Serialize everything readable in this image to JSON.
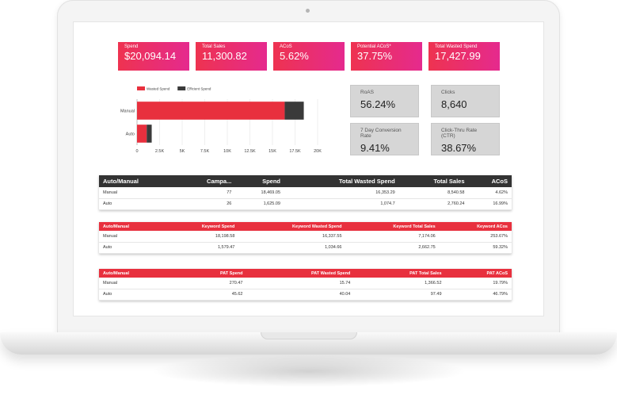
{
  "kpis": [
    {
      "label": "Spend",
      "value": "$20,094.14"
    },
    {
      "label": "Total Sales",
      "value": "11,300.82"
    },
    {
      "label": "ACoS",
      "value": "5.62%"
    },
    {
      "label": "Potential ACoS*",
      "value": "37.75%"
    },
    {
      "label": "Total Wasted Spend",
      "value": "17,427.99"
    }
  ],
  "tiles": [
    {
      "label": "RoAS",
      "value": "56.24%"
    },
    {
      "label": "Clicks",
      "value": "8,640"
    },
    {
      "label": "7 Day Conversion Rate",
      "value": "9.41%"
    },
    {
      "label": "Click-Thru Rate (CTR)",
      "value": "38.67%"
    }
  ],
  "chart_data": {
    "type": "bar",
    "orientation": "horizontal",
    "stacked": true,
    "categories": [
      "Manual",
      "Auto"
    ],
    "series": [
      {
        "name": "Wasted Spend",
        "values": [
          16353,
          1075
        ],
        "color": "#e8303e"
      },
      {
        "name": "Efficient Spend",
        "values": [
          2116,
          551
        ],
        "color": "#3a3a3a"
      }
    ],
    "xlim": [
      0,
      20000
    ],
    "xticks": [
      "0",
      "2.5K",
      "5K",
      "7.5K",
      "10K",
      "12.5K",
      "15K",
      "17.5K",
      "20K"
    ],
    "legend": "top-left",
    "grid": true
  },
  "table1": {
    "headers": [
      "Auto/Manual",
      "Campa...",
      "Spend",
      "Total Wasted Spend",
      "Total Sales",
      "ACoS"
    ],
    "rows": [
      [
        "Manual",
        "77",
        "18,469.05",
        "16,353.29",
        "8,540.58",
        "4.62%"
      ],
      [
        "Auto",
        "26",
        "1,625.09",
        "1,074.7",
        "2,760.24",
        "16.99%"
      ]
    ]
  },
  "table2": {
    "headers": [
      "Auto/Manual",
      "Keyword Spend",
      "Keyword Wasted Spend",
      "Keyword Total Sales",
      "Keyword ACos"
    ],
    "rows": [
      [
        "Manual",
        "18,198.58",
        "16,337.55",
        "7,174.06",
        "253.67%"
      ],
      [
        "Auto",
        "1,579.47",
        "1,034.66",
        "2,662.75",
        "59.32%"
      ]
    ]
  },
  "table3": {
    "headers": [
      "Auto/Manual",
      "PAT Spend",
      "PAT Wasted Spend",
      "PAT Total Sales",
      "PAT ACoS"
    ],
    "rows": [
      [
        "Manual",
        "270.47",
        "15.74",
        "1,366.52",
        "19.79%"
      ],
      [
        "Auto",
        "45.62",
        "40.04",
        "97.49",
        "46.79%"
      ]
    ]
  }
}
